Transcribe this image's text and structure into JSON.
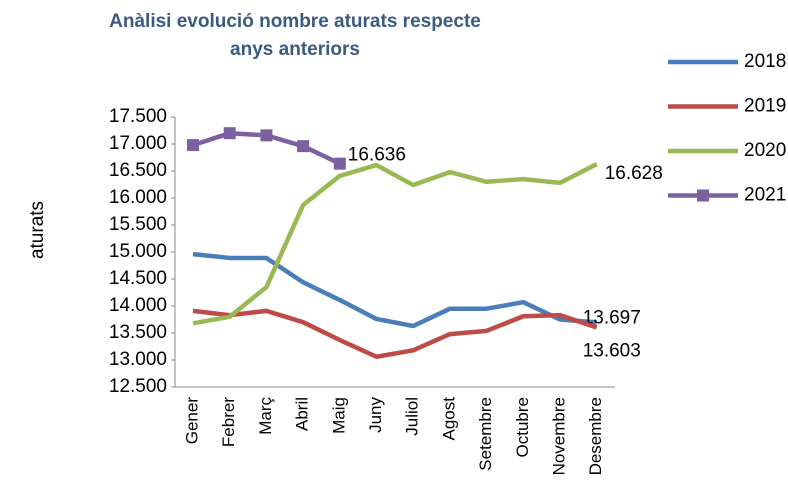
{
  "chart_data": {
    "type": "line",
    "title": "Anàlisi evolució nombre aturats respecte anys anteriors",
    "ylabel": "aturats",
    "categories": [
      "Gener",
      "Febrer",
      "Març",
      "Abril",
      "Maig",
      "Juny",
      "Juliol",
      "Agost",
      "Setembre",
      "Octubre",
      "Novembre",
      "Desembre"
    ],
    "series": [
      {
        "name": "2018",
        "color": "#4a7ebb",
        "values": [
          14960,
          14890,
          14890,
          14440,
          14110,
          13760,
          13630,
          13950,
          13950,
          14070,
          13750,
          13697
        ],
        "value_labels": [
          null,
          null,
          null,
          null,
          null,
          null,
          null,
          null,
          null,
          null,
          null,
          "13.697"
        ]
      },
      {
        "name": "2019",
        "color": "#be4b48",
        "values": [
          13910,
          13830,
          13910,
          13700,
          13370,
          13060,
          13180,
          13480,
          13540,
          13810,
          13830,
          13603
        ],
        "value_labels": [
          null,
          null,
          null,
          null,
          null,
          null,
          null,
          null,
          null,
          null,
          null,
          "13.603"
        ]
      },
      {
        "name": "2020",
        "color": "#98b954",
        "values": [
          13680,
          13800,
          14350,
          15870,
          16410,
          16610,
          16240,
          16480,
          16300,
          16350,
          16280,
          16628
        ],
        "value_labels": [
          null,
          null,
          null,
          null,
          null,
          null,
          null,
          null,
          null,
          null,
          null,
          "16.628"
        ]
      },
      {
        "name": "2021",
        "color": "#7d60a0",
        "marker": "square",
        "values": [
          16980,
          17200,
          17160,
          16960,
          16636,
          null,
          null,
          null,
          null,
          null,
          null,
          null
        ],
        "value_labels": [
          null,
          null,
          null,
          null,
          "16.636",
          null,
          null,
          null,
          null,
          null,
          null,
          null
        ]
      }
    ],
    "ylim": [
      12500,
      17500
    ],
    "yticks": [
      {
        "value": 12500,
        "label": "12.500"
      },
      {
        "value": 13000,
        "label": "13.000"
      },
      {
        "value": 13500,
        "label": "13.500"
      },
      {
        "value": 14000,
        "label": "14.000"
      },
      {
        "value": 14500,
        "label": "14.500"
      },
      {
        "value": 15000,
        "label": "15.000"
      },
      {
        "value": 15500,
        "label": "15.500"
      },
      {
        "value": 16000,
        "label": "16.000"
      },
      {
        "value": 16500,
        "label": "16.500"
      },
      {
        "value": 17000,
        "label": "17.000"
      },
      {
        "value": 17500,
        "label": "17.500"
      }
    ],
    "grid": false,
    "legend": "right"
  }
}
